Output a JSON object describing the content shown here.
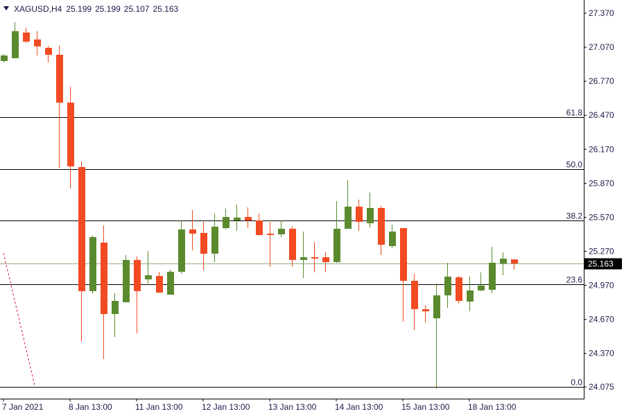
{
  "chart_data": {
    "type": "candlestick",
    "title": "XAGUSD,H4",
    "up_color": "#5b8a2e",
    "down_color": "#f24a22",
    "level_color": "#000000",
    "price_line_color": "#8fae7f",
    "categories": [
      "7 Jan 2021",
      null,
      null,
      null,
      null,
      null,
      "8 Jan 13:00",
      null,
      null,
      null,
      null,
      null,
      "11 Jan 13:00",
      null,
      null,
      null,
      null,
      null,
      "12 Jan 13:00",
      null,
      null,
      null,
      null,
      null,
      "13 Jan 13:00",
      null,
      null,
      null,
      null,
      null,
      "14 Jan 13:00",
      null,
      null,
      null,
      null,
      null,
      "15 Jan 13:00",
      null,
      null,
      null,
      null,
      null,
      "18 Jan 13:00",
      null,
      null,
      null,
      null
    ],
    "open": [
      26.948,
      26.973,
      27.199,
      27.138,
      27.064,
      27.003,
      26.581,
      26.013,
      24.919,
      25.347,
      24.717,
      24.821,
      25.194,
      25.023,
      25.053,
      24.888,
      25.09,
      25.463,
      25.432,
      25.249,
      25.475,
      25.542,
      25.573,
      25.542,
      25.426,
      25.42,
      25.469,
      25.194,
      25.218,
      25.218,
      25.175,
      25.469,
      25.664,
      25.518,
      25.652,
      25.316,
      25.475,
      25.01,
      24.76,
      24.68,
      24.882,
      25.041,
      24.827,
      24.925,
      24.931,
      25.163,
      25.199
    ],
    "high": [
      27.009,
      27.291,
      27.242,
      27.211,
      27.083,
      27.083,
      26.722,
      26.062,
      25.408,
      25.499,
      24.9,
      25.237,
      25.224,
      25.273,
      25.09,
      25.108,
      25.542,
      25.634,
      25.53,
      25.603,
      25.646,
      25.683,
      25.658,
      25.603,
      25.53,
      25.542,
      25.493,
      25.444,
      25.353,
      25.267,
      25.713,
      25.897,
      25.726,
      25.787,
      25.671,
      25.506,
      25.463,
      25.072,
      24.796,
      24.986,
      25.169,
      25.053,
      25.047,
      25.084,
      25.31,
      25.261,
      25.199
    ],
    "low": [
      26.936,
      26.973,
      27.107,
      26.997,
      26.936,
      26.007,
      25.823,
      24.472,
      24.9,
      24.32,
      24.515,
      24.821,
      24.546,
      24.986,
      24.906,
      24.888,
      25.072,
      25.279,
      25.102,
      25.175,
      25.463,
      25.451,
      25.475,
      25.408,
      25.133,
      25.396,
      25.133,
      25.035,
      25.084,
      25.084,
      25.169,
      25.469,
      25.451,
      25.481,
      25.237,
      25.298,
      24.65,
      24.576,
      24.644,
      24.057,
      24.772,
      24.809,
      24.741,
      24.919,
      24.9,
      25.059,
      25.107
    ],
    "close": [
      26.997,
      27.211,
      27.119,
      27.077,
      27.003,
      26.581,
      26.019,
      24.919,
      25.396,
      24.717,
      24.833,
      25.194,
      24.919,
      25.059,
      24.906,
      25.09,
      25.463,
      25.426,
      25.249,
      25.487,
      25.573,
      25.567,
      25.542,
      25.414,
      25.414,
      25.469,
      25.194,
      25.218,
      25.206,
      25.175,
      25.469,
      25.664,
      25.53,
      25.652,
      25.328,
      25.444,
      25.01,
      24.76,
      24.741,
      24.882,
      25.047,
      24.833,
      24.925,
      24.968,
      25.169,
      25.206,
      25.163
    ],
    "ylim": [
      23.971,
      27.486
    ],
    "yticks": [
      {
        "value": 27.37,
        "label": "27.370"
      },
      {
        "value": 27.07,
        "label": "27.070"
      },
      {
        "value": 26.77,
        "label": "26.770"
      },
      {
        "value": 26.47,
        "label": "26.470"
      },
      {
        "value": 26.17,
        "label": "26.170"
      },
      {
        "value": 25.87,
        "label": "25.870"
      },
      {
        "value": 25.57,
        "label": "25.570"
      },
      {
        "value": 25.27,
        "label": "25.270"
      },
      {
        "value": 24.97,
        "label": "24.970"
      },
      {
        "value": 24.67,
        "label": "24.670"
      },
      {
        "value": 24.37,
        "label": "24.370"
      },
      {
        "value": 24.075,
        "label": "24.075"
      }
    ],
    "levels": [
      {
        "value": 26.453,
        "label": "61.8"
      },
      {
        "value": 25.995,
        "label": "50.0"
      },
      {
        "value": 25.542,
        "label": "38.2"
      },
      {
        "value": 24.98,
        "label": "23.6"
      },
      {
        "value": 24.075,
        "label": "0.0"
      }
    ]
  }
}
